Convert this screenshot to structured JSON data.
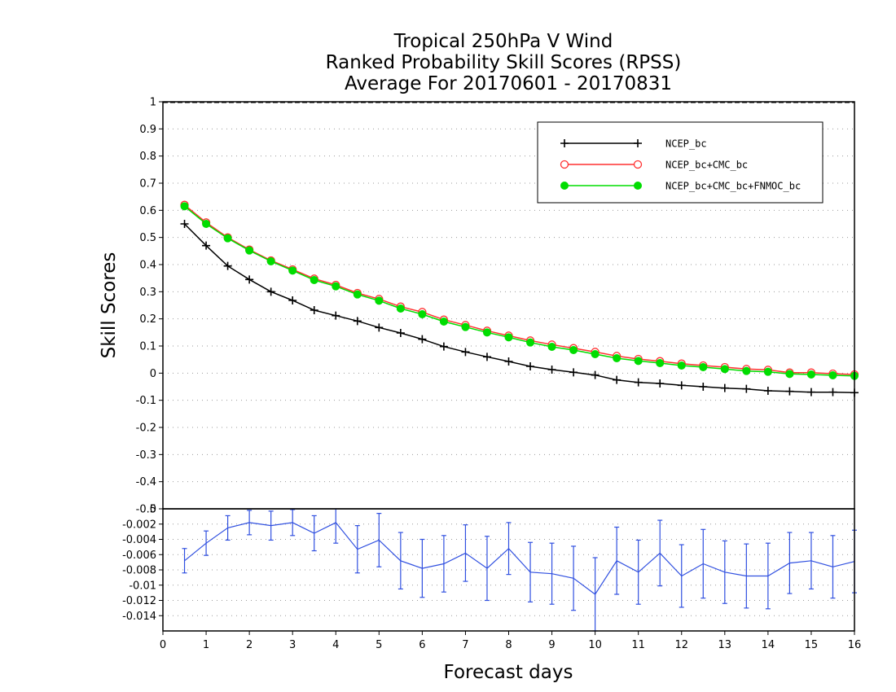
{
  "chart_data": [
    {
      "type": "line",
      "title": [
        "Tropical 250hPa V Wind",
        "Ranked Probability Skill Scores (RPSS)",
        "Average For 20170601 - 20170831"
      ],
      "ylabel": "Skill Scores",
      "ylim": [
        -0.5,
        1
      ],
      "yticks": [
        "-0.5",
        "-0.4",
        "-0.3",
        "-0.2",
        "-0.1",
        "0",
        "0.1",
        "0.2",
        "0.3",
        "0.4",
        "0.5",
        "0.6",
        "0.7",
        "0.8",
        "0.9",
        "1"
      ],
      "xlim": [
        0,
        16
      ],
      "grid": "dotted",
      "legend_position": "top-right",
      "x": [
        0.5,
        1,
        1.5,
        2,
        2.5,
        3,
        3.5,
        4,
        4.5,
        5,
        5.5,
        6,
        6.5,
        7,
        7.5,
        8,
        8.5,
        9,
        9.5,
        10,
        10.5,
        11,
        11.5,
        12,
        12.5,
        13,
        13.5,
        14,
        14.5,
        15,
        15.5,
        16
      ],
      "series": [
        {
          "name": "NCEP_bc",
          "color": "#000000",
          "marker": "plus",
          "values": [
            0.55,
            0.47,
            0.395,
            0.345,
            0.3,
            0.268,
            0.232,
            0.212,
            0.192,
            0.168,
            0.148,
            0.125,
            0.098,
            0.078,
            0.06,
            0.043,
            0.025,
            0.013,
            0.003,
            -0.007,
            -0.025,
            -0.034,
            -0.038,
            -0.045,
            -0.05,
            -0.055,
            -0.058,
            -0.065,
            -0.067,
            -0.07,
            -0.07,
            -0.072
          ]
        },
        {
          "name": "NCEP_bc+CMC_bc",
          "color": "#ff3030",
          "marker": "open-circle",
          "values": [
            0.62,
            0.555,
            0.5,
            0.455,
            0.415,
            0.382,
            0.348,
            0.325,
            0.295,
            0.273,
            0.245,
            0.225,
            0.197,
            0.177,
            0.156,
            0.138,
            0.12,
            0.105,
            0.092,
            0.078,
            0.063,
            0.052,
            0.044,
            0.035,
            0.028,
            0.022,
            0.015,
            0.012,
            0.002,
            0.002,
            -0.002,
            -0.005
          ]
        },
        {
          "name": "NCEP_bc+CMC_bc+FNMOC_bc",
          "color": "#00dd00",
          "marker": "filled-circle",
          "values": [
            0.615,
            0.55,
            0.497,
            0.452,
            0.412,
            0.378,
            0.343,
            0.32,
            0.29,
            0.267,
            0.238,
            0.217,
            0.19,
            0.17,
            0.15,
            0.132,
            0.113,
            0.097,
            0.085,
            0.07,
            0.055,
            0.045,
            0.037,
            0.028,
            0.022,
            0.015,
            0.008,
            0.005,
            -0.003,
            -0.005,
            -0.008,
            -0.01
          ]
        }
      ]
    },
    {
      "type": "line",
      "ylim": [
        -0.016,
        0
      ],
      "yticks": [
        "-0.014",
        "-0.012",
        "-0.01",
        "-0.008",
        "-0.006",
        "-0.004",
        "-0.002",
        "0"
      ],
      "xlim": [
        0,
        16
      ],
      "xticks": [
        "0",
        "1",
        "2",
        "3",
        "4",
        "5",
        "6",
        "7",
        "8",
        "9",
        "10",
        "11",
        "12",
        "13",
        "14",
        "15",
        "16"
      ],
      "xlabel": "Forecast days",
      "grid": "dotted",
      "x": [
        0.5,
        1,
        1.5,
        2,
        2.5,
        3,
        3.5,
        4,
        4.5,
        5,
        5.5,
        6,
        6.5,
        7,
        7.5,
        8,
        8.5,
        9,
        9.5,
        10,
        10.5,
        11,
        11.5,
        12,
        12.5,
        13,
        13.5,
        14,
        14.5,
        15,
        15.5,
        16
      ],
      "series": [
        {
          "color": "#3050e0",
          "marker": "errorbar",
          "values": [
            -0.0068,
            -0.0045,
            -0.0025,
            -0.0018,
            -0.0022,
            -0.0018,
            -0.0032,
            -0.0018,
            -0.0053,
            -0.0041,
            -0.0068,
            -0.0078,
            -0.0072,
            -0.0058,
            -0.0078,
            -0.0052,
            -0.0083,
            -0.0085,
            -0.0091,
            -0.0112,
            -0.0068,
            -0.0083,
            -0.0058,
            -0.0088,
            -0.0072,
            -0.0083,
            -0.0088,
            -0.0088,
            -0.0071,
            -0.0068,
            -0.0076,
            -0.0069
          ],
          "lower": [
            -0.0084,
            -0.0061,
            -0.0041,
            -0.0034,
            -0.0041,
            -0.0035,
            -0.0055,
            -0.0045,
            -0.0084,
            -0.0076,
            -0.0105,
            -0.0116,
            -0.0109,
            -0.0095,
            -0.012,
            -0.0086,
            -0.0122,
            -0.0125,
            -0.0133,
            -0.016,
            -0.0112,
            -0.0125,
            -0.0101,
            -0.0129,
            -0.0117,
            -0.0124,
            -0.013,
            -0.0131,
            -0.0111,
            -0.0105,
            -0.0117,
            -0.011
          ],
          "upper": [
            -0.0052,
            -0.0029,
            -0.0009,
            -0.0002,
            -0.0003,
            -0.0001,
            -0.0009,
            0.0009,
            -0.0022,
            -0.0006,
            -0.0031,
            -0.004,
            -0.0035,
            -0.0021,
            -0.0036,
            -0.0018,
            -0.0044,
            -0.0045,
            -0.0049,
            -0.0064,
            -0.0024,
            -0.0041,
            -0.0015,
            -0.0047,
            -0.0027,
            -0.0042,
            -0.0046,
            -0.0045,
            -0.0031,
            -0.0031,
            -0.0035,
            -0.0028
          ]
        }
      ]
    }
  ]
}
